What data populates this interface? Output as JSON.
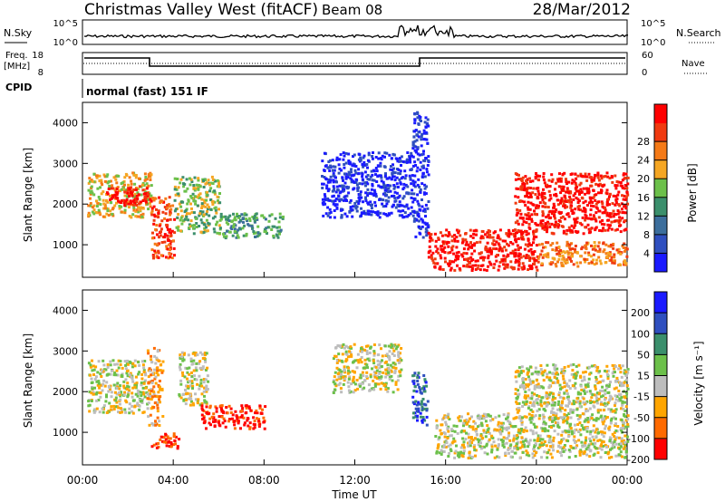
{
  "header": {
    "title": "Christmas Valley West (fitACF)",
    "beam": "Beam 08",
    "date": "28/Mar/2012"
  },
  "noise_panel": {
    "left_label": "N.Sky",
    "right_label": "N.Search",
    "left_ticks": [
      "10^5",
      "10^0"
    ],
    "right_ticks": [
      "10^5",
      "10^0"
    ]
  },
  "freq_panel": {
    "left_label_1": "Freq.",
    "left_label_2": "[MHz]",
    "right_label": "Nave",
    "left_ticks": [
      "18",
      "8"
    ],
    "right_ticks": [
      "60",
      "0"
    ]
  },
  "cpid_panel": {
    "label": "CPID",
    "text": "normal (fast) 151 IF"
  },
  "colors": {
    "power": [
      "#1a1aff",
      "#2f4fbf",
      "#3c6e9c",
      "#3b8f6c",
      "#6cc04a",
      "#f5a623",
      "#f57a17",
      "#f03a10",
      "#ff0000"
    ],
    "velocity": [
      "#ff0000",
      "#ff6a00",
      "#ffa500",
      "#bdbdbd",
      "#6cc04a",
      "#3b8f6c",
      "#2f4fbf",
      "#1a1aff"
    ],
    "line": "#000000"
  },
  "chart_data": [
    {
      "type": "heatmap",
      "name": "power",
      "ylabel": "Slant Range [km]",
      "yticks": [
        "1000",
        "2000",
        "3000",
        "4000"
      ],
      "ylim": [
        200,
        4500
      ],
      "xlim": [
        0,
        24
      ],
      "xticks": [
        "00:00",
        "04:00",
        "08:00",
        "12:00",
        "16:00",
        "20:00",
        "00:00"
      ],
      "colorbar_label": "Power [dB]",
      "colorbar_ticks": [
        "4",
        "8",
        "12",
        "16",
        "20",
        "24",
        "28"
      ],
      "regions": [
        {
          "t0": 0.2,
          "t1": 3.0,
          "r0": 1700,
          "r1": 2800,
          "level": 5
        },
        {
          "t0": 1.0,
          "t1": 3.0,
          "r0": 2000,
          "r1": 2500,
          "level": 8
        },
        {
          "t0": 3.0,
          "t1": 4.0,
          "r0": 700,
          "r1": 2200,
          "level": 7
        },
        {
          "t0": 4.0,
          "t1": 6.0,
          "r0": 1300,
          "r1": 2700,
          "level": 4
        },
        {
          "t0": 6.0,
          "t1": 8.8,
          "r0": 1200,
          "r1": 1800,
          "level": 3
        },
        {
          "t0": 10.5,
          "t1": 14.5,
          "r0": 1700,
          "r1": 3300,
          "level": 0
        },
        {
          "t0": 14.5,
          "t1": 15.2,
          "r0": 1200,
          "r1": 4300,
          "level": 0
        },
        {
          "t0": 15.2,
          "t1": 20.0,
          "r0": 400,
          "r1": 1400,
          "level": 8
        },
        {
          "t0": 19.0,
          "t1": 24.0,
          "r0": 1300,
          "r1": 2800,
          "level": 8
        },
        {
          "t0": 20.0,
          "t1": 24.0,
          "r0": 500,
          "r1": 1100,
          "level": 6
        }
      ]
    },
    {
      "type": "heatmap",
      "name": "velocity",
      "ylabel": "Slant Range [km]",
      "yticks": [
        "1000",
        "2000",
        "3000",
        "4000"
      ],
      "ylim": [
        200,
        4500
      ],
      "xlim": [
        0,
        24
      ],
      "xlabel": "Time UT",
      "xticks": [
        "00:00",
        "04:00",
        "08:00",
        "12:00",
        "16:00",
        "20:00",
        "00:00"
      ],
      "colorbar_label": "Velocity [m s⁻¹]",
      "colorbar_ticks": [
        "200",
        "100",
        "50",
        "15",
        "-15",
        "-50",
        "-100",
        "-200"
      ],
      "regions": [
        {
          "t0": 0.2,
          "t1": 2.8,
          "r0": 1500,
          "r1": 2800,
          "level": 3
        },
        {
          "t0": 2.8,
          "t1": 3.5,
          "r0": 1200,
          "r1": 3100,
          "level": 2
        },
        {
          "t0": 3.0,
          "t1": 4.2,
          "r0": 600,
          "r1": 1000,
          "level": 0
        },
        {
          "t0": 4.2,
          "t1": 5.5,
          "r0": 1700,
          "r1": 3000,
          "level": 3
        },
        {
          "t0": 5.2,
          "t1": 8.0,
          "r0": 1100,
          "r1": 1700,
          "level": 0
        },
        {
          "t0": 11.0,
          "t1": 14.0,
          "r0": 2000,
          "r1": 3200,
          "level": 3
        },
        {
          "t0": 14.5,
          "t1": 15.2,
          "r0": 1200,
          "r1": 2500,
          "level": 6
        },
        {
          "t0": 15.5,
          "t1": 24.0,
          "r0": 400,
          "r1": 1500,
          "level": 3
        },
        {
          "t0": 19.0,
          "t1": 24.0,
          "r0": 1500,
          "r1": 2700,
          "level": 3
        }
      ]
    }
  ]
}
